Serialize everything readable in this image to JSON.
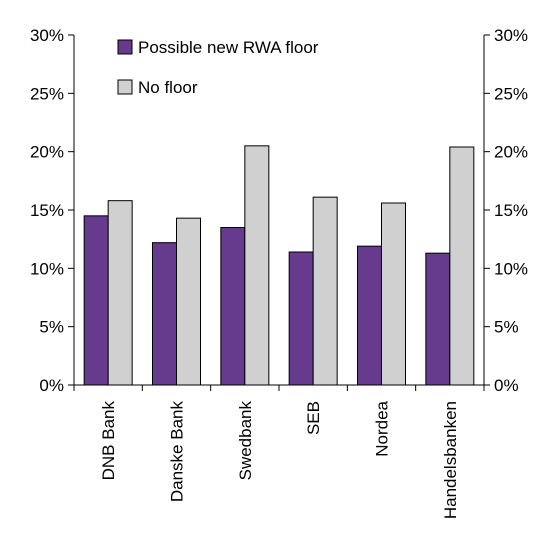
{
  "chart_data": {
    "type": "bar",
    "categories": [
      "DNB Bank",
      "Danske Bank",
      "Swedbank",
      "SEB",
      "Nordea",
      "Handelsbanken"
    ],
    "series": [
      {
        "name": "Possible new RWA floor",
        "color": "#663a8c",
        "values": [
          14.5,
          12.2,
          13.5,
          11.4,
          11.9,
          11.3
        ]
      },
      {
        "name": "No floor",
        "color": "#d0d0d0",
        "values": [
          15.8,
          14.3,
          20.5,
          16.1,
          15.6,
          20.4
        ]
      }
    ],
    "ylim": [
      0,
      30
    ],
    "yticks": [
      0,
      5,
      10,
      15,
      20,
      25,
      30
    ],
    "ytick_labels": [
      "0%",
      "5%",
      "10%",
      "15%",
      "20%",
      "25%",
      "30%"
    ],
    "secondary_y_axis": true,
    "grid": false,
    "legend_position": "top-left",
    "title": "",
    "xlabel": "",
    "ylabel": ""
  }
}
